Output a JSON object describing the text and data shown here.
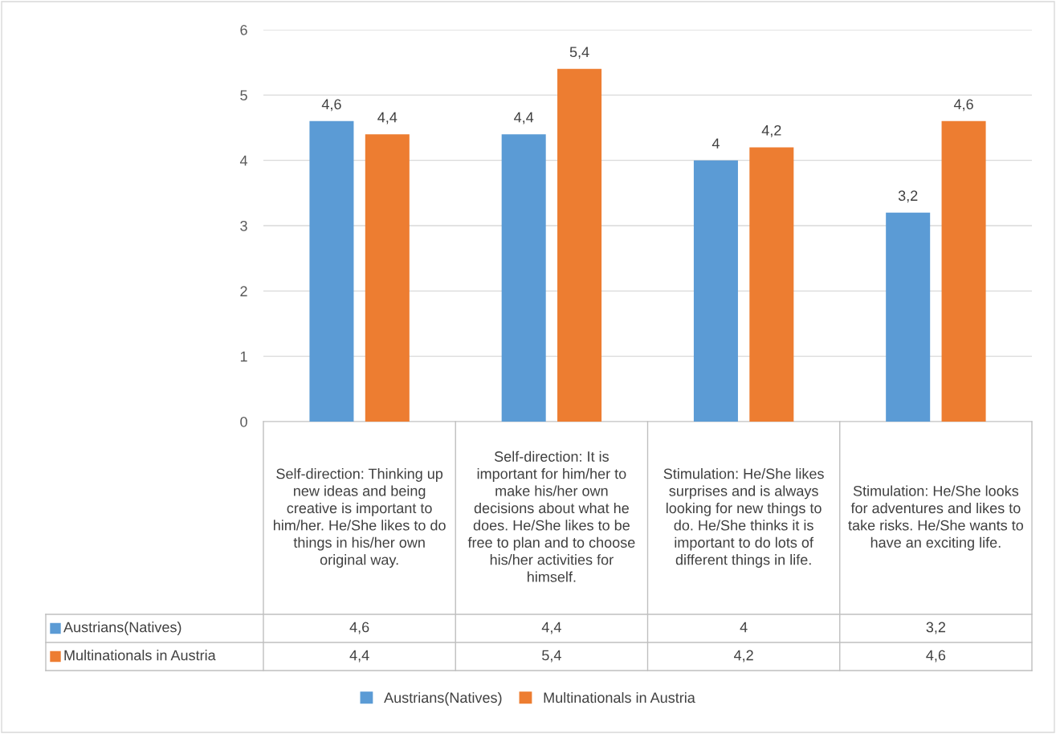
{
  "chart_data": {
    "type": "bar",
    "categories": [
      "Self-direction: Thinking up new ideas and being creative is important to him/her. He/She likes to do things in his/her own original way.",
      "Self-direction: It is important for him/her to make his/her own decisions about what he does. He/She likes to be free to plan and to choose his/her activities for himself.",
      "Stimulation: He/She likes surprises and is always looking for new things to do. He/She thinks it is important to do lots of different things in life.",
      "Stimulation: He/She looks for adventures and likes to take risks. He/She wants to have an exciting life."
    ],
    "series": [
      {
        "name": "Austrians(Natives)",
        "color": "#5b9bd5",
        "values": [
          4.6,
          4.4,
          4.0,
          3.2
        ],
        "value_labels": [
          "4,6",
          "4,4",
          "4",
          "3,2"
        ]
      },
      {
        "name": "Multinationals in Austria",
        "color": "#ed7d31",
        "values": [
          4.4,
          5.4,
          4.2,
          4.6
        ],
        "value_labels": [
          "4,4",
          "5,4",
          "4,2",
          "4,6"
        ]
      }
    ],
    "ylim": [
      0,
      6
    ],
    "yticks": [
      0,
      1,
      2,
      3,
      4,
      5,
      6
    ],
    "grid": "y",
    "legend": "bottom"
  }
}
